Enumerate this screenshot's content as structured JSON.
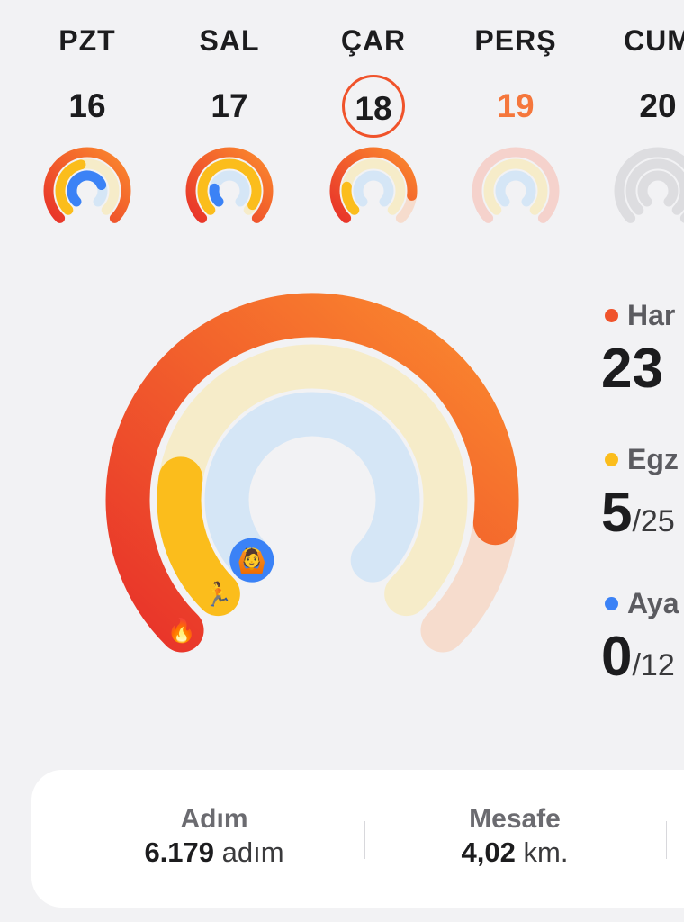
{
  "colors": {
    "move": "#f0532b",
    "exercise": "#fbbd1c",
    "stand": "#3b82f6",
    "today_ring": "#f0532b"
  },
  "days": [
    {
      "name": "PZT",
      "num": "16",
      "state": "past",
      "rings": {
        "move": 1.0,
        "exercise": 0.45,
        "stand": 0.75
      }
    },
    {
      "name": "SAL",
      "num": "17",
      "state": "past",
      "rings": {
        "move": 1.0,
        "exercise": 0.95,
        "stand": 0.2
      }
    },
    {
      "name": "ÇAR",
      "num": "18",
      "state": "today",
      "rings": {
        "move": 0.86,
        "exercise": 0.2,
        "stand": 0
      }
    },
    {
      "name": "PERŞ",
      "num": "19",
      "state": "future",
      "rings": {
        "move": 0,
        "exercise": 0,
        "stand": 0
      }
    },
    {
      "name": "CUM",
      "num": "20",
      "state": "future-empty",
      "rings": {
        "move": 0,
        "exercise": 0,
        "stand": 0
      }
    }
  ],
  "main_rings": {
    "move": 0.86,
    "exercise": 0.2,
    "stand": 0,
    "icons": {
      "move": "flame-icon",
      "exercise": "running-person-icon",
      "stand": "standing-person-icon"
    }
  },
  "metrics": [
    {
      "label": "Har",
      "value": "23",
      "goal": "",
      "color": "#f0532b"
    },
    {
      "label": "Egz",
      "value": "5",
      "goal": "/25",
      "color": "#fbbd1c"
    },
    {
      "label": "Aya",
      "value": "0",
      "goal": "/12",
      "color": "#3b82f6"
    }
  ],
  "summary": {
    "steps": {
      "title": "Adım",
      "value": "6.179",
      "unit": "adım"
    },
    "distance": {
      "title": "Mesafe",
      "value": "4,02",
      "unit": "km."
    }
  }
}
